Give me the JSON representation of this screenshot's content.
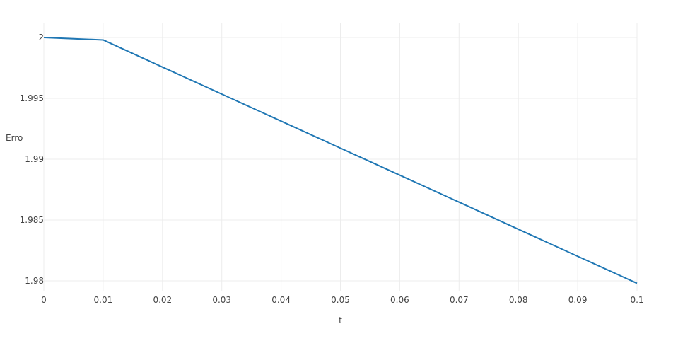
{
  "chart_data": {
    "type": "line",
    "title": "",
    "xlabel": "t",
    "ylabel": "Erro",
    "xlim": [
      0,
      0.1
    ],
    "ylim": [
      1.98,
      2
    ],
    "x_ticks": [
      0,
      0.01,
      0.02,
      0.03,
      0.04,
      0.05,
      0.06,
      0.07,
      0.08,
      0.09,
      0.1
    ],
    "x_tick_labels": [
      "0",
      "0.01",
      "0.02",
      "0.03",
      "0.04",
      "0.05",
      "0.06",
      "0.07",
      "0.08",
      "0.09",
      "0.1"
    ],
    "y_ticks": [
      1.98,
      1.985,
      1.99,
      1.995,
      2
    ],
    "y_tick_labels": [
      "1.98",
      "1.985",
      "1.99",
      "1.995",
      "2"
    ],
    "grid": true,
    "legend": "none",
    "series": [
      {
        "color": "#1f77b4",
        "x": [
          0,
          0.01,
          0.02,
          0.03,
          0.04,
          0.05,
          0.06,
          0.07,
          0.08,
          0.09,
          0.1
        ],
        "y": [
          2.0,
          1.9998,
          1.99757,
          1.99535,
          1.99313,
          1.99091,
          1.98869,
          1.98647,
          1.98424,
          1.98202,
          1.9798
        ]
      }
    ]
  }
}
